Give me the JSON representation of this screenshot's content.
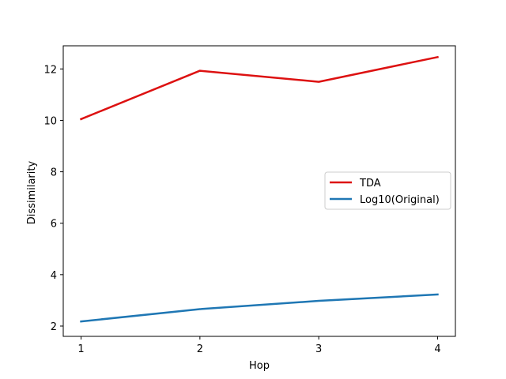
{
  "chart_data": {
    "type": "line",
    "title": "",
    "xlabel": "Hop",
    "ylabel": "Dissimilarity",
    "x": [
      1,
      2,
      3,
      4
    ],
    "xlim": [
      0.85,
      4.15
    ],
    "ylim": [
      1.6,
      12.9
    ],
    "xticks": [
      1,
      2,
      3,
      4
    ],
    "yticks": [
      2,
      4,
      6,
      8,
      10,
      12
    ],
    "grid": false,
    "legend_position": "center-right",
    "series": [
      {
        "name": "TDA",
        "color": "#dd1111",
        "values": [
          10.05,
          11.93,
          11.5,
          12.46
        ]
      },
      {
        "name": "Log10(Original)",
        "color": "#1f77b4",
        "values": [
          2.18,
          2.66,
          2.98,
          3.23
        ]
      }
    ]
  }
}
